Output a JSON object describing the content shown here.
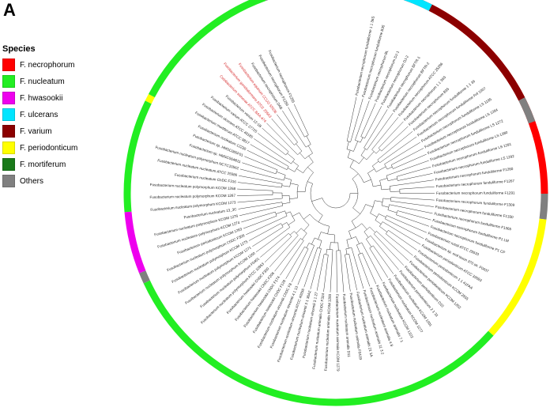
{
  "panel_label": "A",
  "legend": {
    "title": "Species",
    "items": [
      {
        "label": "F. necrophorum",
        "color": "#ff0000"
      },
      {
        "label": "F. nucleatum",
        "color": "#22ee22"
      },
      {
        "label": "F. hwasookii",
        "color": "#ee00ee"
      },
      {
        "label": "F. ulcerans",
        "color": "#00e5ff"
      },
      {
        "label": "F. varium",
        "color": "#8b0000"
      },
      {
        "label": "F. periodonticum",
        "color": "#ffff00"
      },
      {
        "label": "F. mortiferum",
        "color": "#1a7a1a"
      },
      {
        "label": "Others",
        "color": "#808080"
      }
    ]
  },
  "ring": [
    {
      "species": "Others",
      "start": 340,
      "end": 355
    },
    {
      "species": "F. necrophorum",
      "start": 355,
      "end": 450
    },
    {
      "species": "Others",
      "start": 450,
      "end": 457
    },
    {
      "species": "F. periodonticum",
      "start": 457,
      "end": 492
    },
    {
      "species": "F. nucleatum",
      "start": 492,
      "end": 605
    },
    {
      "species": "Others",
      "start": 605,
      "end": 608
    },
    {
      "species": "F. hwasookii",
      "start": 608,
      "end": 625
    },
    {
      "species": "F. nucleatum",
      "start": 625,
      "end": 656
    },
    {
      "species": "F. periodonticum",
      "start": 656,
      "end": 658
    },
    {
      "species": "F. nucleatum",
      "start": 658,
      "end": 700
    },
    {
      "species": "Others",
      "start": 707,
      "end": 717
    },
    {
      "species": "F. mortiferum",
      "start": 717,
      "end": 733
    },
    {
      "species": "F. ulcerans",
      "start": 733,
      "end": 747
    },
    {
      "species": "F. varium",
      "start": 747,
      "end": 783
    },
    {
      "species": "Others",
      "start": 783,
      "end": 790
    }
  ],
  "leaves": [
    "Fusobacterium necrophorum funduliforme 1 1 36S",
    "Fusobacterium necrophorum funduliforme B35",
    "Fusobacterium necrophorum BL",
    "Fusobacterium necrophorum DJ-1",
    "Fusobacterium necrophorum DJ-2",
    "Fusobacterium necrophorum BFTR-1",
    "Fusobacterium necrophorum BFTR-2",
    "Fusobacterium necrophorum ATCC 25286",
    "Fusobacterium necrophorum 1 1 36S",
    "Fusobacterium necrophorum B35",
    "Fusobacterium necrophorum funduliforme 1 1 36",
    "Fusobacterium necrophorum funduliforme Fnf 1007",
    "Fusobacterium necrophorum funduliforme LS 1195",
    "Fusobacterium necrophorum funduliforme LS 1264",
    "Fusobacterium necrophorum funduliforme LS 1272",
    "Fusobacterium necrophorum funduliforme LS 1280",
    "Fusobacterium necrophorum funduliforme LS 1291",
    "Fusobacterium necrophorum funduliforme LS 1292",
    "Fusobacterium necrophorum funduliforme F1260",
    "Fusobacterium necrophorum funduliforme F1267",
    "Fusobacterium necrophorum funduliforme F1291",
    "Fusobacterium necrophorum funduliforme F1309",
    "Fusobacterium necrophorum funduliforme F1330",
    "Fusobacterium necrophorum funduliforme F1365",
    "Fusobacterium necrophorum funduliforme P1 LM",
    "Fusobacterium necrophorum funduliforme P1 CP",
    "Fusobacterium russii ATCC 25533",
    "Fusobacterium sp. oral taxon 370 str. F0437",
    "Fusobacterium periodonticum ATCC 33693",
    "Fusobacterium periodonticum 1 1 41FAA",
    "Fusobacterium periodonticum KCOM 2555",
    "Fusobacterium periodonticum KCOM 1262",
    "Fusobacterium periodonticum D10",
    "Fusobacterium periodonticum 2 1 31",
    "Fusobacterium nucleatum KCOM 1001",
    "Fusobacterium nucleatum KCOM 1277",
    "Fusobacterium nucleatum KCOM 1322",
    "Fusobacterium nucleatum animalis 7 1",
    "Fusobacterium nucleatum animalis 4 8",
    "Fusobacterium nucleatum animalis 11 3 2",
    "Fusobacterium nucleatum animalis 21 1A",
    "Fusobacterium nucleatum animalis F0419",
    "Fusobacterium nucleatum animalis D11",
    "Fusobacterium nucleatum animalis KCOM 1279",
    "Fusobacterium nucleatum animalis KCOM 1280",
    "Fusobacterium nucleatum animalis ChDC F324",
    "Fusobacterium nucleatum vincentii 3 1 27",
    "Fusobacterium nucleatum vincentii 3 1 36A2",
    "Fusobacterium nucleatum vincentii ATCC 49256",
    "Fusobacterium nucleatum vincentii 4 1 13",
    "Fusobacterium nucleatum vincentii ChDC F8",
    "Fusobacterium hwasookii ChDC F128",
    "Fusobacterium hwasookii ChDC F174",
    "Fusobacterium hwasookii ChDC F206",
    "Fusobacterium hwasookii ChDC F300",
    "Fusobacterium nucleatum polymorphum ATCC 10953",
    "Fusobacterium nucleatum polymorphum F0401",
    "Fusobacterium nucleatum polymorphum KCOM 1260",
    "Fusobacterium nucleatum polymorphum KCOM 1271",
    "Fusobacterium nucleatum polymorphum KCOM 1275",
    "Fusobacterium nucleatum polymorphum ChDC F306",
    "Fusobacterium periodonticum KCOM 1263",
    "Fusobacterium nucleatum polymorphum KCOM 1274",
    "Fusobacterium nucleatum polymorphum KCOM 1276",
    "Fusobacterium nucleatum 13_3C",
    "Fusobacterium nucleatum polymorphum KCOM 1273",
    "Fusobacterium nucleatum polymorphum KCOM 1267",
    "Fusobacterium nucleatum polymorphum KCOM 1268",
    "Fusobacterium nucleatum ChDC F316",
    "Fusobacterium nucleatum nucleatum ATCC 25586",
    "Fusobacterium nucleatum polymorphum NCTC10562",
    "Fusobacterium sp. HMSC064B11",
    "Fusobacterium sp. HMSC065F01",
    "Fusobacterium nucleatum 12230",
    "Fusobacterium mortiferum ATCC 9817",
    "Fusobacterium ulcerans ATCC 49185",
    "Fusobacterium varium ATCC 27725",
    "Fusobacterium varium 12-1B",
    "Cetobacterium somerae ATCC BAA-474",
    "Fusobacterium gonidiaformans ATCC 25563",
    "Fusobacterium equinum CCUG 55536",
    "Fusobacterium necrophorum DAB",
    "Fusobacterium necrophorum F1250",
    "Fusobacterium necrophorum F1255"
  ]
}
